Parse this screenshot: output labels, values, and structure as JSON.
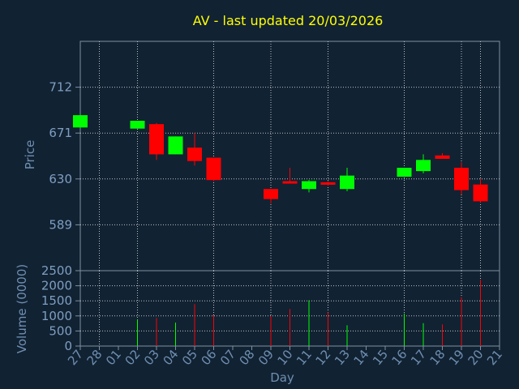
{
  "chart_data": {
    "type": "candlestick",
    "title": "AV - last updated 20/03/2026",
    "xlabel": "Day",
    "colors": {
      "background": "#112233",
      "title": "#ffff00",
      "up": "#00ff00",
      "down": "#ff0000",
      "grid": "#c0c0c0",
      "frame": "#8090a0"
    },
    "x": [
      "27",
      "28",
      "01",
      "02",
      "03",
      "04",
      "05",
      "06",
      "07",
      "08",
      "09",
      "10",
      "11",
      "12",
      "13",
      "14",
      "15",
      "16",
      "17",
      "18",
      "19",
      "20",
      "21"
    ],
    "price": {
      "ylabel": "Price",
      "ylim": [
        548,
        753
      ],
      "yticks": [
        589,
        630,
        671,
        712
      ],
      "grid": true,
      "candles": [
        {
          "x": "27",
          "open": 676,
          "high": 687,
          "low": 676,
          "close": 687
        },
        {
          "x": "02",
          "open": 675,
          "high": 682,
          "low": 675,
          "close": 682
        },
        {
          "x": "03",
          "open": 679,
          "high": 680,
          "low": 647,
          "close": 652
        },
        {
          "x": "04",
          "open": 652,
          "high": 668,
          "low": 652,
          "close": 668
        },
        {
          "x": "05",
          "open": 658,
          "high": 671,
          "low": 642,
          "close": 646
        },
        {
          "x": "06",
          "open": 649,
          "high": 649,
          "low": 628,
          "close": 629
        },
        {
          "x": "09",
          "open": 621,
          "high": 621,
          "low": 608,
          "close": 612
        },
        {
          "x": "10",
          "open": 628,
          "high": 640,
          "low": 626,
          "close": 626
        },
        {
          "x": "11",
          "open": 621,
          "high": 629,
          "low": 618,
          "close": 628
        },
        {
          "x": "12",
          "open": 627,
          "high": 628,
          "low": 624,
          "close": 625
        },
        {
          "x": "13",
          "open": 621,
          "high": 640,
          "low": 619,
          "close": 633
        },
        {
          "x": "16",
          "open": 632,
          "high": 640,
          "low": 632,
          "close": 640
        },
        {
          "x": "17",
          "open": 637,
          "high": 652,
          "low": 635,
          "close": 647
        },
        {
          "x": "18",
          "open": 651,
          "high": 653,
          "low": 648,
          "close": 648
        },
        {
          "x": "19",
          "open": 640,
          "high": 645,
          "low": 616,
          "close": 620
        },
        {
          "x": "20",
          "open": 625,
          "high": 630,
          "low": 609,
          "close": 610
        }
      ]
    },
    "volume": {
      "ylabel": "Volume (0000)",
      "ylim": [
        0,
        2500
      ],
      "yticks": [
        0,
        500,
        1000,
        1500,
        2000,
        2500
      ],
      "grid": true,
      "bars": [
        {
          "x": "02",
          "value": 880,
          "dir": "up"
        },
        {
          "x": "03",
          "value": 930,
          "dir": "down"
        },
        {
          "x": "04",
          "value": 780,
          "dir": "up"
        },
        {
          "x": "05",
          "value": 1390,
          "dir": "down"
        },
        {
          "x": "06",
          "value": 1020,
          "dir": "down"
        },
        {
          "x": "09",
          "value": 990,
          "dir": "down"
        },
        {
          "x": "10",
          "value": 1230,
          "dir": "down"
        },
        {
          "x": "11",
          "value": 1520,
          "dir": "up"
        },
        {
          "x": "12",
          "value": 1120,
          "dir": "down"
        },
        {
          "x": "13",
          "value": 690,
          "dir": "up"
        },
        {
          "x": "16",
          "value": 1080,
          "dir": "up"
        },
        {
          "x": "17",
          "value": 760,
          "dir": "up"
        },
        {
          "x": "18",
          "value": 720,
          "dir": "down"
        },
        {
          "x": "19",
          "value": 1620,
          "dir": "down"
        },
        {
          "x": "20",
          "value": 2200,
          "dir": "down"
        }
      ]
    }
  }
}
